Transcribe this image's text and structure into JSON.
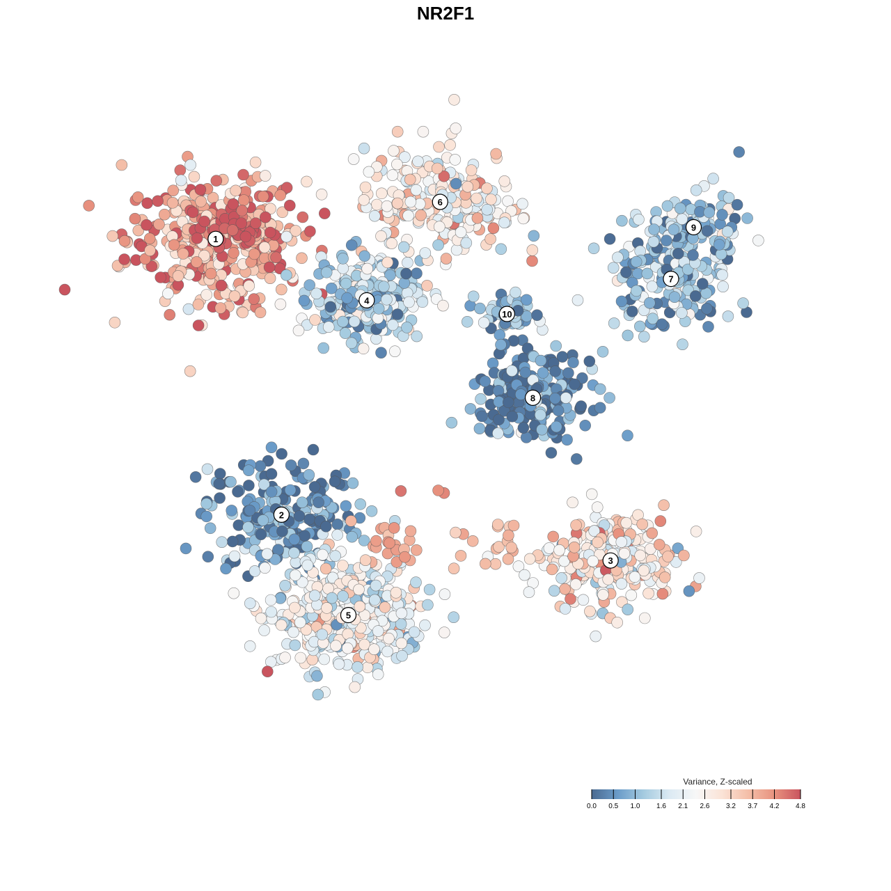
{
  "chart_data": {
    "type": "scatter",
    "title": "NR2F1",
    "xlabel": "",
    "ylabel": "",
    "grid": false,
    "legend": {
      "title": "Variance, Z-scaled",
      "placement": "bottom-right",
      "ticks": [
        "0.0",
        "0.5",
        "1.0",
        "1.6",
        "2.1",
        "2.6",
        "3.2",
        "3.7",
        "4.2",
        "4.8"
      ],
      "range": [
        0.0,
        4.8
      ],
      "colors": [
        "#4a6a91",
        "#6b9cc9",
        "#a5cbe0",
        "#dceaf3",
        "#f7f7f7",
        "#fbe3d6",
        "#f4bea8",
        "#e8927f",
        "#c9545e"
      ]
    },
    "clusters": [
      {
        "label": "1",
        "x": -21.3,
        "y": 21.2,
        "mean_value": 3.9,
        "spread": 7.5,
        "n": 380
      },
      {
        "label": "2",
        "x": -15.2,
        "y": -7.1,
        "mean_value": 0.3,
        "spread": 6.5,
        "n": 220
      },
      {
        "label": "3",
        "x": 15.3,
        "y": -11.8,
        "mean_value": 2.7,
        "spread": 5.5,
        "n": 260
      },
      {
        "label": "4",
        "x": -7.3,
        "y": 14.9,
        "mean_value": 1.2,
        "spread": 4.5,
        "n": 240
      },
      {
        "label": "5",
        "x": -9.0,
        "y": -17.4,
        "mean_value": 2.2,
        "spread": 6.5,
        "n": 420
      },
      {
        "label": "6",
        "x": -0.5,
        "y": 25.0,
        "mean_value": 2.7,
        "spread": 6.5,
        "n": 210
      },
      {
        "label": "7",
        "x": 20.9,
        "y": 17.1,
        "mean_value": 1.0,
        "spread": 5.5,
        "n": 150
      },
      {
        "label": "8",
        "x": 8.1,
        "y": 4.9,
        "mean_value": 0.3,
        "spread": 5.0,
        "n": 200
      },
      {
        "label": "9",
        "x": 23.0,
        "y": 22.4,
        "mean_value": 1.0,
        "spread": 4.0,
        "n": 120
      },
      {
        "label": "10",
        "x": 5.7,
        "y": 13.5,
        "mean_value": 1.1,
        "spread": 2.5,
        "n": 60
      }
    ],
    "hotspots": [
      {
        "x": -19.8,
        "y": 22.5,
        "value": 4.8,
        "n": 40
      },
      {
        "x": -1.9,
        "y": -4.4,
        "value": 4.4,
        "n": 3
      },
      {
        "x": -5.4,
        "y": -10.5,
        "value": 3.9,
        "n": 20
      },
      {
        "x": 3.9,
        "y": -10.5,
        "value": 3.6,
        "n": 18
      }
    ]
  }
}
